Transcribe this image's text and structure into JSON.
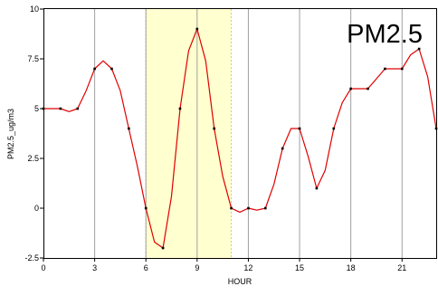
{
  "chart_data": {
    "type": "line",
    "title": "PM2.5",
    "xlabel": "HOUR",
    "ylabel": "PM2.5_ug/m3",
    "xlim": [
      0,
      23
    ],
    "ylim": [
      -2.5,
      10
    ],
    "xticks": [
      0,
      3,
      6,
      9,
      12,
      15,
      18,
      21
    ],
    "yticks": [
      -2.5,
      0,
      2.5,
      5,
      7.5,
      10
    ],
    "ytick_labels": [
      "-2.5",
      "0",
      "2.5",
      "5",
      "7.5",
      "10"
    ],
    "vgrid": true,
    "hgrid": false,
    "highlight_band": {
      "x": [
        6,
        11
      ],
      "color": "#ffffd0"
    },
    "series": [
      {
        "color": "#e00000",
        "points": [
          [
            0,
            5.0
          ],
          [
            1,
            5.0
          ],
          [
            1.5,
            4.85
          ],
          [
            2,
            5.0
          ],
          [
            2.5,
            5.9
          ],
          [
            3,
            7.0
          ],
          [
            3.5,
            7.4
          ],
          [
            4,
            7.0
          ],
          [
            4.5,
            5.9
          ],
          [
            5,
            4.0
          ],
          [
            5.5,
            2.1
          ],
          [
            6,
            0.0
          ],
          [
            6.5,
            -1.7
          ],
          [
            7,
            -2.0
          ],
          [
            7.5,
            0.6
          ],
          [
            8,
            5.0
          ],
          [
            8.5,
            7.9
          ],
          [
            9,
            9.0
          ],
          [
            9.5,
            7.4
          ],
          [
            10,
            4.0
          ],
          [
            10.5,
            1.6
          ],
          [
            11,
            0.0
          ],
          [
            11.5,
            -0.2
          ],
          [
            12,
            0.0
          ],
          [
            12.5,
            -0.1
          ],
          [
            13,
            0.0
          ],
          [
            13.5,
            1.2
          ],
          [
            14,
            3.0
          ],
          [
            14.5,
            4.0
          ],
          [
            15,
            4.0
          ],
          [
            15.5,
            2.6
          ],
          [
            16,
            1.0
          ],
          [
            16.5,
            1.9
          ],
          [
            17,
            4.0
          ],
          [
            17.5,
            5.3
          ],
          [
            18,
            6.0
          ],
          [
            18.5,
            6.0
          ],
          [
            19,
            6.0
          ],
          [
            19.5,
            6.5
          ],
          [
            20,
            7.0
          ],
          [
            20.5,
            7.0
          ],
          [
            21,
            7.0
          ],
          [
            21.5,
            7.7
          ],
          [
            22,
            8.0
          ],
          [
            22.5,
            6.6
          ],
          [
            23,
            4.0
          ]
        ],
        "markers": [
          [
            0,
            5.0
          ],
          [
            1,
            5.0
          ],
          [
            2,
            5.0
          ],
          [
            3,
            7.0
          ],
          [
            4,
            7.0
          ],
          [
            5,
            4.0
          ],
          [
            6,
            0.0
          ],
          [
            7,
            -2.0
          ],
          [
            8,
            5.0
          ],
          [
            9,
            9.0
          ],
          [
            10,
            4.0
          ],
          [
            11,
            0.0
          ],
          [
            12,
            0.0
          ],
          [
            13,
            0.0
          ],
          [
            14,
            3.0
          ],
          [
            15,
            4.0
          ],
          [
            16,
            1.0
          ],
          [
            17,
            4.0
          ],
          [
            18,
            6.0
          ],
          [
            19,
            6.0
          ],
          [
            20,
            7.0
          ],
          [
            21,
            7.0
          ],
          [
            22,
            8.0
          ],
          [
            23,
            4.0
          ]
        ]
      }
    ]
  }
}
